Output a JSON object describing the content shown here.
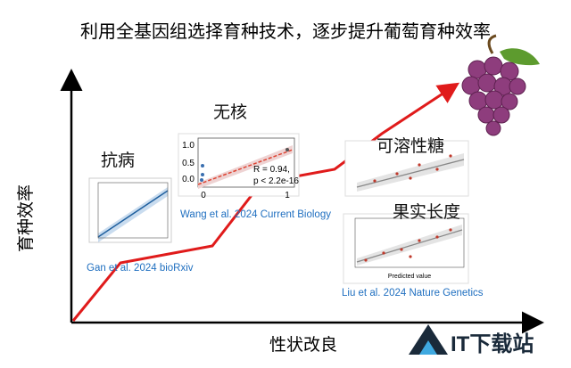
{
  "title": "利用全基因组选择育种技术，逐步提升葡萄育种效率",
  "y_axis_label": "育种效率",
  "x_axis_label": "性状改良",
  "stages": [
    {
      "label": "抗病",
      "citation": "Gan et al. 2024 bioRxiv"
    },
    {
      "label": "无核",
      "citation": "Wang et al. 2024 Current Biology"
    },
    {
      "label": "可溶性糖"
    },
    {
      "label": "果实长度",
      "citation": "Liu et al. 2024 Nature Genetics"
    }
  ],
  "inset_wang": {
    "stat_r": "R = 0.94,",
    "stat_p": "p < 2.2e-16",
    "yticks": [
      "1.0",
      "0.5",
      "0.0"
    ],
    "xticks": [
      "0",
      "1"
    ]
  },
  "inset_liu": {
    "x_label": "Predicted value"
  },
  "watermark": "IT下载站"
}
